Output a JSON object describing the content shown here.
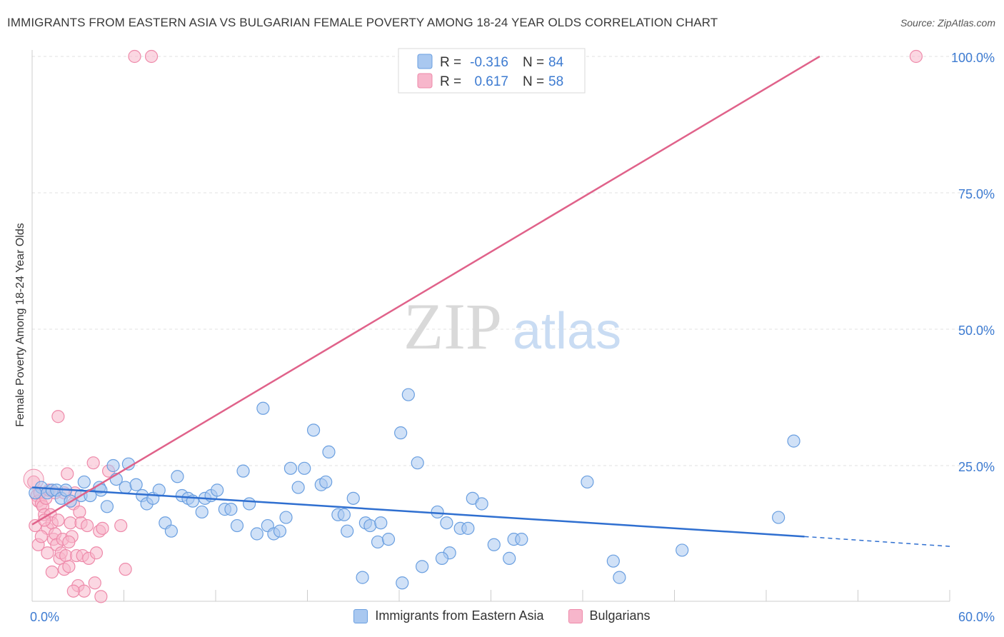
{
  "title": "IMMIGRANTS FROM EASTERN ASIA VS BULGARIAN FEMALE POVERTY AMONG 18-24 YEAR OLDS CORRELATION CHART",
  "source": "Source: ZipAtlas.com",
  "watermark": {
    "zip": "ZIP",
    "atlas": "atlas"
  },
  "colors": {
    "blue_fill": "#a9c8f0",
    "blue_stroke": "#6a9fe0",
    "blue_line": "#2f6fd0",
    "pink_fill": "#f7b6cb",
    "pink_stroke": "#ee8aaa",
    "pink_line": "#e0628a",
    "tick_text": "#3d7bd1",
    "grid": "#e2e2e2"
  },
  "legend": {
    "rows": [
      {
        "r_label": "R =",
        "r_value": "-0.316",
        "n_label": "N =",
        "n_value": "84"
      },
      {
        "r_label": "R =",
        "r_value": "0.617",
        "n_label": "N =",
        "n_value": "58"
      }
    ]
  },
  "chart_data": {
    "type": "scatter",
    "title": "IMMIGRANTS FROM EASTERN ASIA VS BULGARIAN FEMALE POVERTY AMONG 18-24 YEAR OLDS CORRELATION CHART",
    "xlabel": "",
    "ylabel": "Female Poverty Among 18-24 Year Olds",
    "xlim": [
      0,
      60
    ],
    "ylim": [
      0,
      102
    ],
    "x_tick_labels": [
      {
        "value": 0,
        "label": "0.0%"
      },
      {
        "value": 60,
        "label": "60.0%"
      }
    ],
    "y_tick_labels": [
      {
        "value": 25,
        "label": "25.0%"
      },
      {
        "value": 50,
        "label": "50.0%"
      },
      {
        "value": 75,
        "label": "75.0%"
      },
      {
        "value": 100,
        "label": "100.0%"
      }
    ],
    "y_gridlines": [
      25,
      50,
      75,
      100
    ],
    "legend_position": "top-center",
    "series": [
      {
        "name": "Immigrants from Eastern Asia",
        "R": -0.316,
        "N": 84,
        "trend": {
          "x0": 0,
          "y0": 21.0,
          "x1": 50.5,
          "y1": 12.0,
          "dash_to_x": 60,
          "dash_to_y": 10.2
        },
        "points": [
          [
            0.6,
            21.0
          ],
          [
            1.0,
            20.0
          ],
          [
            1.3,
            20.5
          ],
          [
            1.6,
            20.5
          ],
          [
            1.9,
            19.0
          ],
          [
            2.2,
            20.5
          ],
          [
            2.5,
            18.5
          ],
          [
            3.2,
            19.5
          ],
          [
            3.4,
            22.0
          ],
          [
            3.8,
            19.5
          ],
          [
            4.4,
            21.0
          ],
          [
            4.5,
            20.5
          ],
          [
            4.9,
            17.5
          ],
          [
            5.3,
            25.0
          ],
          [
            5.5,
            22.5
          ],
          [
            6.1,
            21.0
          ],
          [
            6.3,
            25.3
          ],
          [
            6.8,
            21.5
          ],
          [
            7.2,
            19.5
          ],
          [
            7.5,
            18.0
          ],
          [
            7.9,
            19.0
          ],
          [
            8.3,
            20.5
          ],
          [
            8.7,
            14.5
          ],
          [
            9.1,
            13.0
          ],
          [
            9.5,
            23.0
          ],
          [
            9.8,
            19.5
          ],
          [
            10.2,
            19.0
          ],
          [
            10.5,
            18.5
          ],
          [
            11.1,
            16.5
          ],
          [
            11.3,
            19.0
          ],
          [
            11.7,
            19.5
          ],
          [
            12.1,
            20.5
          ],
          [
            12.6,
            17.0
          ],
          [
            13.0,
            17.0
          ],
          [
            13.4,
            14.0
          ],
          [
            13.8,
            24.0
          ],
          [
            14.2,
            18.0
          ],
          [
            14.7,
            12.5
          ],
          [
            15.1,
            35.5
          ],
          [
            15.4,
            14.0
          ],
          [
            15.8,
            12.5
          ],
          [
            16.2,
            13.0
          ],
          [
            16.6,
            15.5
          ],
          [
            16.9,
            24.5
          ],
          [
            17.4,
            21.0
          ],
          [
            17.8,
            24.5
          ],
          [
            18.4,
            31.5
          ],
          [
            18.9,
            21.5
          ],
          [
            19.2,
            22.0
          ],
          [
            19.4,
            27.5
          ],
          [
            20.0,
            16.0
          ],
          [
            20.4,
            16.0
          ],
          [
            20.6,
            13.0
          ],
          [
            21.0,
            19.0
          ],
          [
            21.8,
            14.5
          ],
          [
            22.1,
            14.0
          ],
          [
            22.6,
            11.0
          ],
          [
            22.8,
            14.5
          ],
          [
            23.3,
            11.5
          ],
          [
            24.1,
            31.0
          ],
          [
            24.6,
            38.0
          ],
          [
            25.2,
            25.5
          ],
          [
            24.2,
            3.5
          ],
          [
            25.5,
            6.5
          ],
          [
            21.6,
            4.5
          ],
          [
            26.5,
            16.5
          ],
          [
            27.3,
            9.0
          ],
          [
            26.8,
            8.0
          ],
          [
            27.1,
            14.5
          ],
          [
            28.0,
            13.5
          ],
          [
            28.5,
            13.5
          ],
          [
            28.8,
            19.0
          ],
          [
            29.4,
            18.0
          ],
          [
            30.2,
            10.5
          ],
          [
            31.2,
            8.0
          ],
          [
            31.5,
            11.5
          ],
          [
            32.0,
            11.5
          ],
          [
            36.3,
            22.0
          ],
          [
            38.0,
            7.5
          ],
          [
            38.4,
            4.5
          ],
          [
            42.5,
            9.5
          ],
          [
            48.8,
            15.5
          ],
          [
            49.8,
            29.5
          ],
          [
            0.2,
            20.0
          ]
        ]
      },
      {
        "name": "Bulgarians",
        "R": 0.617,
        "N": 58,
        "trend": {
          "x0": 0,
          "y0": 14.2,
          "x1": 51.5,
          "y1": 100
        },
        "points": [
          [
            0.1,
            22.0
          ],
          [
            0.3,
            19.5
          ],
          [
            0.4,
            18.5
          ],
          [
            0.5,
            20.0
          ],
          [
            0.6,
            18.0
          ],
          [
            0.7,
            17.5
          ],
          [
            0.8,
            16.0
          ],
          [
            0.9,
            19.0
          ],
          [
            1.0,
            13.5
          ],
          [
            1.1,
            20.5
          ],
          [
            1.2,
            16.0
          ],
          [
            1.3,
            14.5
          ],
          [
            1.4,
            11.5
          ],
          [
            1.5,
            12.5
          ],
          [
            1.6,
            10.5
          ],
          [
            1.7,
            15.0
          ],
          [
            1.8,
            8.0
          ],
          [
            1.9,
            9.0
          ],
          [
            2.0,
            11.5
          ],
          [
            2.1,
            6.0
          ],
          [
            2.2,
            8.5
          ],
          [
            2.3,
            23.5
          ],
          [
            2.4,
            6.5
          ],
          [
            2.5,
            14.5
          ],
          [
            2.6,
            12.0
          ],
          [
            2.7,
            18.0
          ],
          [
            2.8,
            20.0
          ],
          [
            2.9,
            8.5
          ],
          [
            3.0,
            3.0
          ],
          [
            3.1,
            16.5
          ],
          [
            3.2,
            14.5
          ],
          [
            3.3,
            8.5
          ],
          [
            3.4,
            2.0
          ],
          [
            3.6,
            14.0
          ],
          [
            3.7,
            8.0
          ],
          [
            4.0,
            25.5
          ],
          [
            4.1,
            3.5
          ],
          [
            4.2,
            9.0
          ],
          [
            4.4,
            13.0
          ],
          [
            4.5,
            1.0
          ],
          [
            4.6,
            13.5
          ],
          [
            0.2,
            14.0
          ],
          [
            0.4,
            10.5
          ],
          [
            0.6,
            12.0
          ],
          [
            0.8,
            15.0
          ],
          [
            1.0,
            9.0
          ],
          [
            1.3,
            5.5
          ],
          [
            1.5,
            20.0
          ],
          [
            1.7,
            34.0
          ],
          [
            2.1,
            20.0
          ],
          [
            2.4,
            11.0
          ],
          [
            2.7,
            2.0
          ],
          [
            5.0,
            24.0
          ],
          [
            5.8,
            14.0
          ],
          [
            6.1,
            6.0
          ],
          [
            6.7,
            100
          ],
          [
            7.8,
            100
          ],
          [
            57.8,
            100
          ]
        ]
      }
    ]
  },
  "bottom_legend": {
    "items": [
      {
        "label": "Immigrants from Eastern Asia"
      },
      {
        "label": "Bulgarians"
      }
    ]
  }
}
